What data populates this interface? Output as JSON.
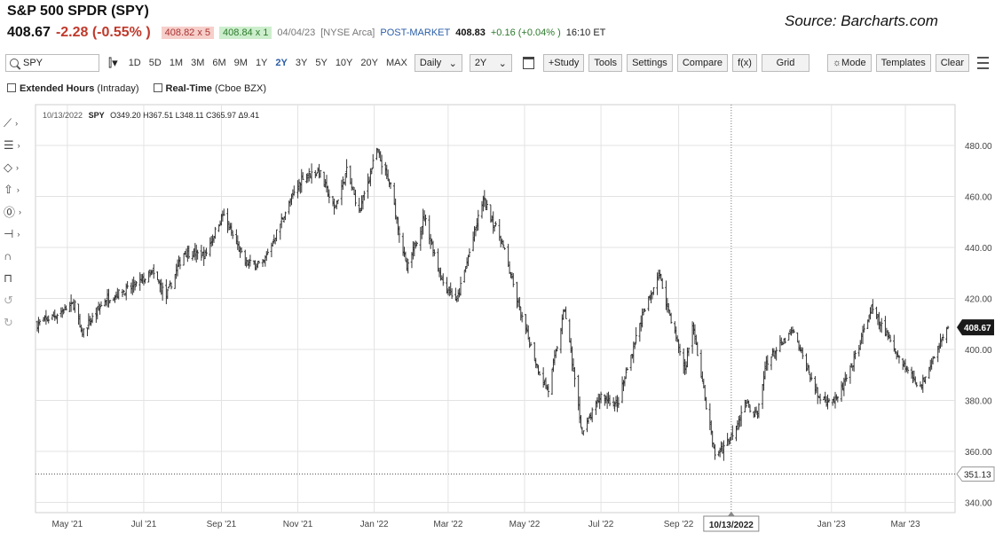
{
  "header": {
    "title": "S&P 500 SPDR (SPY)",
    "source": "Source: Barcharts.com",
    "last": "408.67",
    "change": "-2.28 (-0.55% )",
    "bid": "408.82 x 5",
    "ask": "408.84 x 1",
    "date": "04/04/23",
    "exchange": "[NYSE Arca]",
    "post_label": "POST-MARKET",
    "post_price": "408.83",
    "post_change": "+0.16 (+0.04% )",
    "time": "16:10 ET"
  },
  "toolbar": {
    "symbol": "SPY",
    "periods": [
      "1D",
      "5D",
      "1M",
      "3M",
      "6M",
      "9M",
      "1Y",
      "2Y",
      "3Y",
      "5Y",
      "10Y",
      "20Y",
      "MAX"
    ],
    "active_period": "2Y",
    "interval": "Daily",
    "range": "2Y",
    "study": "+Study",
    "tools": "Tools",
    "settings": "Settings",
    "compare": "Compare",
    "fx": "f(x)",
    "grid": "Grid",
    "mode": "Mode",
    "templates": "Templates",
    "clear": "Clear"
  },
  "options": {
    "extended_hours": "Extended Hours",
    "extended_hours_note": "(Intraday)",
    "real_time": "Real-Time",
    "real_time_note": "(Cboe BZX)"
  },
  "left_tools": [
    "line-tool-icon",
    "fib-tool-icon",
    "shape-tool-icon",
    "arrow-tool-icon",
    "annotation-tool-icon",
    "measure-tool-icon",
    "magnet-icon",
    "lock-icon",
    "undo-icon",
    "redo-icon"
  ],
  "crosshair": {
    "date_label": "10/13/2022",
    "ohlc_symbol": "SPY",
    "ohlc": "O349.20 H367.51 L348.11 C365.97 Δ9.41",
    "price_label": "351.13",
    "price": 351.13
  },
  "colors": {
    "bars": "#333333",
    "grid": "#e3e3e3",
    "last_badge": "#1a1a1a",
    "accent": "#2b5ea8",
    "negative": "#c0392b",
    "positive": "#2c7a2c"
  },
  "chart_data": {
    "type": "ohlc",
    "interval": "Daily",
    "y_ticks": [
      340,
      360,
      380,
      400,
      420,
      440,
      460,
      480
    ],
    "ylim": [
      336,
      496
    ],
    "x_tick_labels": [
      "May '21",
      "Jul '21",
      "Sep '21",
      "Nov '21",
      "Jan '22",
      "Mar '22",
      "May '22",
      "Jul '22",
      "Sep '22",
      "Jan '23",
      "Mar '23"
    ],
    "x_tick_dates": [
      "2021-05-01",
      "2021-07-01",
      "2021-09-01",
      "2021-11-01",
      "2022-01-01",
      "2022-03-01",
      "2022-05-01",
      "2022-07-01",
      "2022-09-01",
      "2023-01-01",
      "2023-03-01"
    ],
    "last_price": 408.67,
    "approx_closes": [
      [
        "2021-04-07",
        410
      ],
      [
        "2021-04-20",
        413
      ],
      [
        "2021-05-07",
        418
      ],
      [
        "2021-05-12",
        406
      ],
      [
        "2021-06-01",
        420
      ],
      [
        "2021-06-21",
        424
      ],
      [
        "2021-07-08",
        430
      ],
      [
        "2021-07-19",
        421
      ],
      [
        "2021-08-02",
        438
      ],
      [
        "2021-08-19",
        437
      ],
      [
        "2021-09-02",
        453
      ],
      [
        "2021-09-20",
        434
      ],
      [
        "2021-10-04",
        433
      ],
      [
        "2021-10-21",
        453
      ],
      [
        "2021-11-05",
        468
      ],
      [
        "2021-11-18",
        470
      ],
      [
        "2021-11-30",
        455
      ],
      [
        "2021-12-10",
        470
      ],
      [
        "2021-12-20",
        454
      ],
      [
        "2022-01-03",
        478
      ],
      [
        "2022-01-14",
        464
      ],
      [
        "2022-01-27",
        431
      ],
      [
        "2022-02-10",
        452
      ],
      [
        "2022-02-24",
        427
      ],
      [
        "2022-03-08",
        419
      ],
      [
        "2022-03-29",
        459
      ],
      [
        "2022-04-13",
        442
      ],
      [
        "2022-04-29",
        412
      ],
      [
        "2022-05-12",
        392
      ],
      [
        "2022-05-20",
        384
      ],
      [
        "2022-06-02",
        416
      ],
      [
        "2022-06-16",
        367
      ],
      [
        "2022-07-01",
        382
      ],
      [
        "2022-07-14",
        378
      ],
      [
        "2022-08-01",
        410
      ],
      [
        "2022-08-16",
        430
      ],
      [
        "2022-09-06",
        392
      ],
      [
        "2022-09-12",
        410
      ],
      [
        "2022-09-30",
        358
      ],
      [
        "2022-10-13",
        366
      ],
      [
        "2022-10-24",
        379
      ],
      [
        "2022-11-03",
        374
      ],
      [
        "2022-11-10",
        395
      ],
      [
        "2022-12-01",
        407
      ],
      [
        "2022-12-22",
        381
      ],
      [
        "2023-01-05",
        380
      ],
      [
        "2023-01-17",
        393
      ],
      [
        "2023-02-02",
        416
      ],
      [
        "2023-02-24",
        397
      ],
      [
        "2023-03-13",
        385
      ],
      [
        "2023-03-22",
        396
      ],
      [
        "2023-04-04",
        408.67
      ]
    ]
  }
}
